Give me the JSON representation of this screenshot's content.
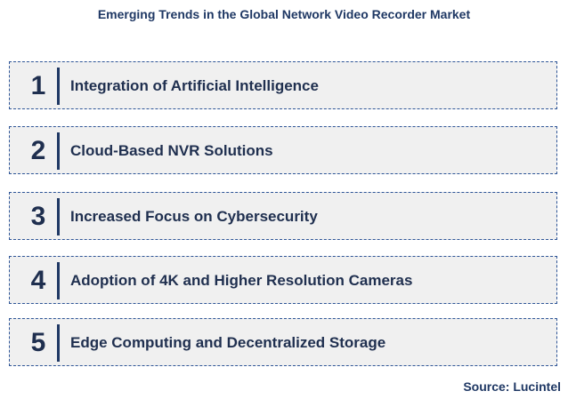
{
  "title": "Emerging Trends in the Global Network Video Recorder Market",
  "items": [
    {
      "number": "1",
      "label": "Integration of Artificial Intelligence"
    },
    {
      "number": "2",
      "label": "Cloud-Based NVR Solutions"
    },
    {
      "number": "3",
      "label": "Increased Focus on Cybersecurity"
    },
    {
      "number": "4",
      "label": "Adoption of 4K and Higher Resolution Cameras"
    },
    {
      "number": "5",
      "label": "Edge Computing and Decentralized Storage"
    }
  ],
  "source": "Source: Lucintel",
  "colors": {
    "title": "#1f3864",
    "box_background": "#f0f0f0",
    "box_border": "#2e5597",
    "accent_bar": "#1f3864"
  }
}
